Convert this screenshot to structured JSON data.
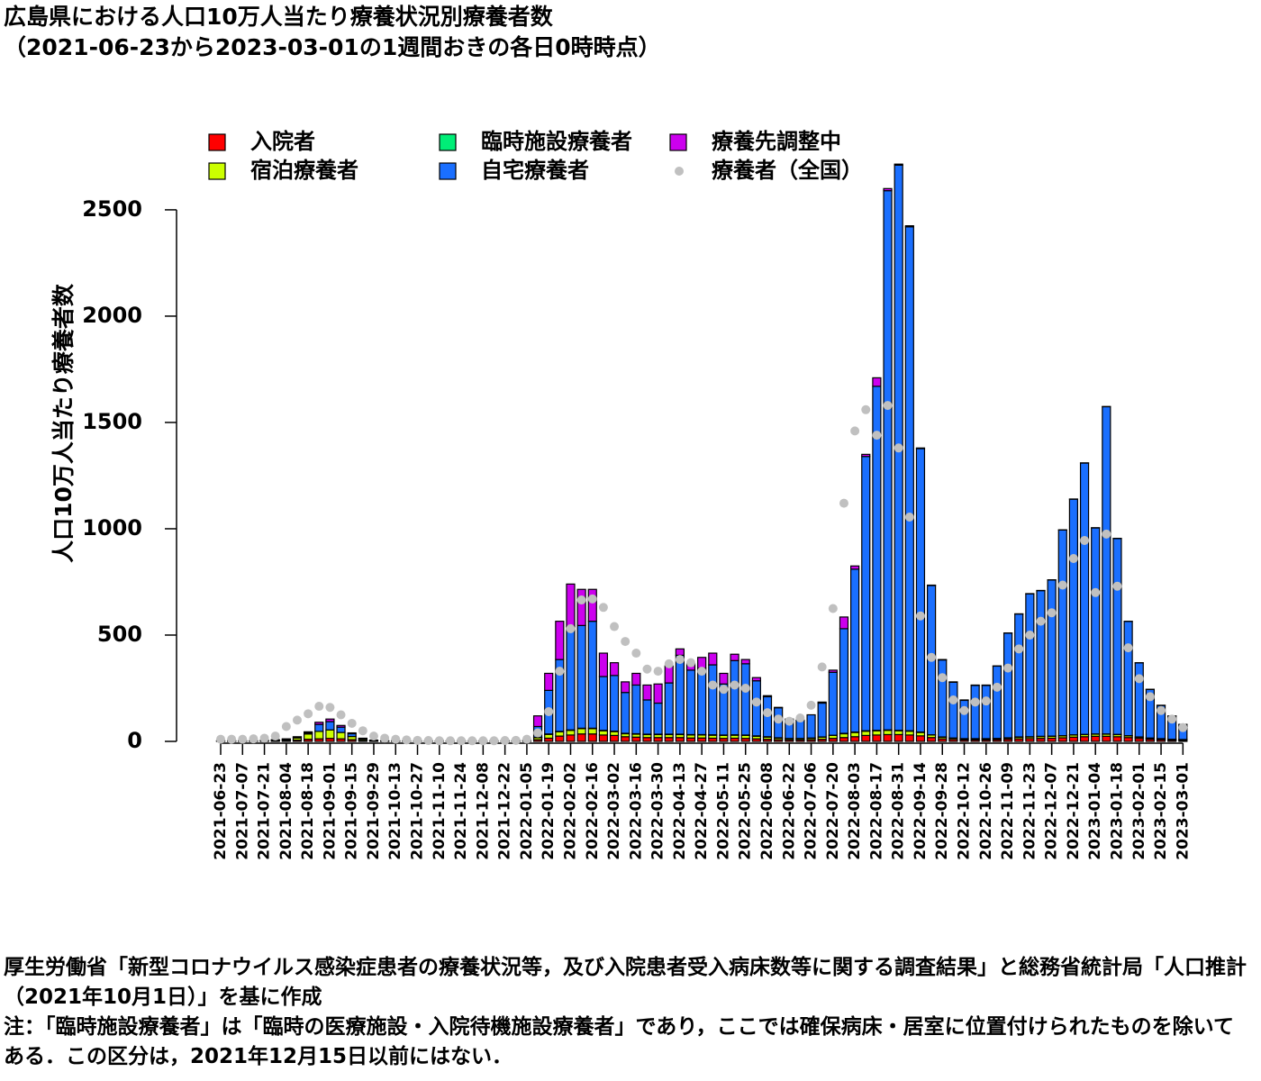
{
  "chart_data": {
    "type": "bar",
    "stacked": true,
    "title": "広島県における人口10万人当たり療養状況別療養者数",
    "subtitle": "（2021-06-23から2023-03-01の1週間おきの各日0時時点）",
    "y_label": "人口10万人当たり療養者数",
    "notes": [
      "厚生労働省「新型コロナウイルス感染症患者の療養状況等，及び入院患者受入病床数等に関する調査結果」と総務省統計局「人口推計（2021年10月1日）」を基に作成",
      "注：「臨時施設療養者」は「臨時の医療施設・入院待機施設療養者」であり，ここでは確保病床・居室に位置付けられたものを除いてある．この区分は，2021年12月15日以前にはない．"
    ],
    "categories": [
      "2021-06-23",
      null,
      "2021-07-07",
      null,
      "2021-07-21",
      null,
      "2021-08-04",
      null,
      "2021-08-18",
      null,
      "2021-09-01",
      null,
      "2021-09-15",
      null,
      "2021-09-29",
      null,
      "2021-10-13",
      null,
      "2021-10-27",
      null,
      "2021-11-10",
      null,
      "2021-11-24",
      null,
      "2021-12-08",
      null,
      "2021-12-22",
      null,
      "2022-01-05",
      null,
      "2022-01-19",
      null,
      "2022-02-02",
      null,
      "2022-02-16",
      null,
      "2022-03-02",
      null,
      "2022-03-16",
      null,
      "2022-03-30",
      null,
      "2022-04-13",
      null,
      "2022-04-27",
      null,
      "2022-05-11",
      null,
      "2022-05-25",
      null,
      "2022-06-08",
      null,
      "2022-06-22",
      null,
      "2022-07-06",
      null,
      "2022-07-20",
      null,
      "2022-08-03",
      null,
      "2022-08-17",
      null,
      "2022-08-31",
      null,
      "2022-09-14",
      null,
      "2022-09-28",
      null,
      "2022-10-12",
      null,
      "2022-10-26",
      null,
      "2022-11-09",
      null,
      "2022-11-23",
      null,
      "2022-12-07",
      null,
      "2022-12-21",
      null,
      "2023-01-04",
      null,
      "2023-01-18",
      null,
      "2023-02-01",
      null,
      "2023-02-15",
      null,
      "2023-03-01"
    ],
    "series": [
      {
        "name": "入院者",
        "color": "#ff0000",
        "values": [
          1,
          1,
          1,
          1,
          2,
          3,
          4,
          6,
          10,
          12,
          14,
          12,
          8,
          4,
          2,
          1,
          1,
          1,
          1,
          1,
          1,
          1,
          1,
          1,
          1,
          1,
          1,
          1,
          2,
          8,
          15,
          25,
          30,
          35,
          35,
          30,
          28,
          22,
          20,
          18,
          18,
          18,
          18,
          16,
          16,
          15,
          14,
          15,
          14,
          12,
          10,
          8,
          7,
          7,
          8,
          10,
          14,
          18,
          22,
          28,
          30,
          32,
          32,
          30,
          26,
          18,
          12,
          9,
          7,
          7,
          7,
          8,
          10,
          12,
          13,
          14,
          15,
          17,
          20,
          22,
          24,
          24,
          22,
          18,
          14,
          10,
          8,
          6,
          5
        ]
      },
      {
        "name": "宿泊療養者",
        "color": "#ccff00",
        "values": [
          1,
          1,
          1,
          1,
          2,
          3,
          5,
          10,
          25,
          35,
          40,
          30,
          15,
          6,
          2,
          1,
          1,
          1,
          1,
          1,
          1,
          1,
          1,
          1,
          1,
          1,
          1,
          1,
          1,
          10,
          18,
          20,
          22,
          25,
          25,
          20,
          18,
          14,
          14,
          14,
          14,
          14,
          14,
          14,
          14,
          14,
          14,
          14,
          14,
          12,
          10,
          8,
          6,
          6,
          7,
          10,
          14,
          18,
          20,
          20,
          20,
          20,
          18,
          18,
          16,
          12,
          8,
          6,
          5,
          5,
          5,
          5,
          6,
          8,
          8,
          9,
          9,
          9,
          10,
          10,
          10,
          10,
          10,
          8,
          6,
          5,
          4,
          3,
          3
        ]
      },
      {
        "name": "臨時施設療養者",
        "color": "#00ee77",
        "values": [
          0,
          0,
          0,
          0,
          0,
          0,
          0,
          0,
          0,
          0,
          0,
          0,
          0,
          0,
          0,
          0,
          0,
          0,
          0,
          0,
          0,
          0,
          0,
          0,
          0,
          0,
          1,
          1,
          1,
          1,
          2,
          2,
          2,
          2,
          2,
          2,
          2,
          2,
          2,
          2,
          2,
          2,
          2,
          2,
          2,
          2,
          2,
          2,
          2,
          2,
          2,
          1,
          1,
          1,
          1,
          1,
          1,
          2,
          2,
          2,
          2,
          2,
          2,
          2,
          2,
          1,
          1,
          1,
          1,
          1,
          1,
          1,
          1,
          1,
          1,
          1,
          1,
          1,
          1,
          1,
          1,
          1,
          1,
          1,
          1,
          1,
          1,
          1,
          1
        ]
      },
      {
        "name": "自宅療養者",
        "color": "#1a6fff",
        "values": [
          1,
          1,
          1,
          1,
          1,
          2,
          3,
          4,
          5,
          33,
          39,
          25,
          13,
          4,
          2,
          1,
          1,
          1,
          1,
          1,
          1,
          1,
          1,
          1,
          1,
          1,
          1,
          1,
          1,
          51,
          205,
          338,
          486,
          483,
          503,
          253,
          262,
          192,
          229,
          161,
          146,
          241,
          371,
          303,
          313,
          329,
          240,
          349,
          335,
          259,
          188,
          141,
          91,
          86,
          109,
          159,
          296,
          492,
          766,
          1290,
          1618,
          2536,
          2658,
          2370,
          1333,
          702,
          362,
          262,
          180,
          250,
          250,
          340,
          492,
          578,
          672,
          685,
          734,
          967,
          1108,
          1276,
          969,
          1539,
          921,
          537,
          348,
          228,
          156,
          109,
          70
        ]
      },
      {
        "name": "療養先調整中",
        "color": "#cc00ee",
        "values": [
          0,
          0,
          0,
          0,
          0,
          0,
          0,
          2,
          5,
          10,
          12,
          8,
          4,
          1,
          0,
          0,
          0,
          0,
          0,
          0,
          0,
          0,
          0,
          0,
          0,
          0,
          0,
          0,
          0,
          50,
          80,
          180,
          200,
          170,
          150,
          110,
          60,
          50,
          55,
          70,
          90,
          80,
          30,
          30,
          50,
          55,
          50,
          30,
          20,
          15,
          5,
          2,
          0,
          0,
          0,
          5,
          10,
          55,
          15,
          10,
          40,
          10,
          5,
          5,
          3,
          2,
          2,
          2,
          2,
          2,
          2,
          1,
          1,
          1,
          1,
          1,
          1,
          1,
          1,
          1,
          1,
          1,
          1,
          1,
          1,
          1,
          1,
          1,
          1
        ]
      },
      {
        "name": "療養者（全国）",
        "color": "#c0c0c0",
        "type": "scatter",
        "values": [
          10,
          10,
          10,
          12,
          15,
          25,
          70,
          100,
          130,
          165,
          160,
          125,
          85,
          50,
          25,
          15,
          10,
          7,
          5,
          4,
          3,
          3,
          3,
          3,
          3,
          3,
          4,
          5,
          10,
          40,
          140,
          330,
          530,
          665,
          670,
          630,
          540,
          470,
          415,
          340,
          330,
          365,
          385,
          370,
          330,
          265,
          245,
          265,
          250,
          185,
          135,
          105,
          95,
          110,
          170,
          350,
          625,
          1120,
          1460,
          1560,
          1440,
          1580,
          1380,
          1055,
          590,
          395,
          300,
          195,
          145,
          185,
          190,
          255,
          345,
          435,
          500,
          565,
          605,
          735,
          860,
          945,
          700,
          975,
          730,
          440,
          295,
          210,
          145,
          105,
          65
        ]
      }
    ],
    "ylim": [
      0,
      2720
    ],
    "yticks": [
      0,
      500,
      1000,
      1500,
      2000,
      2500
    ],
    "grid": false,
    "legend": "top"
  }
}
